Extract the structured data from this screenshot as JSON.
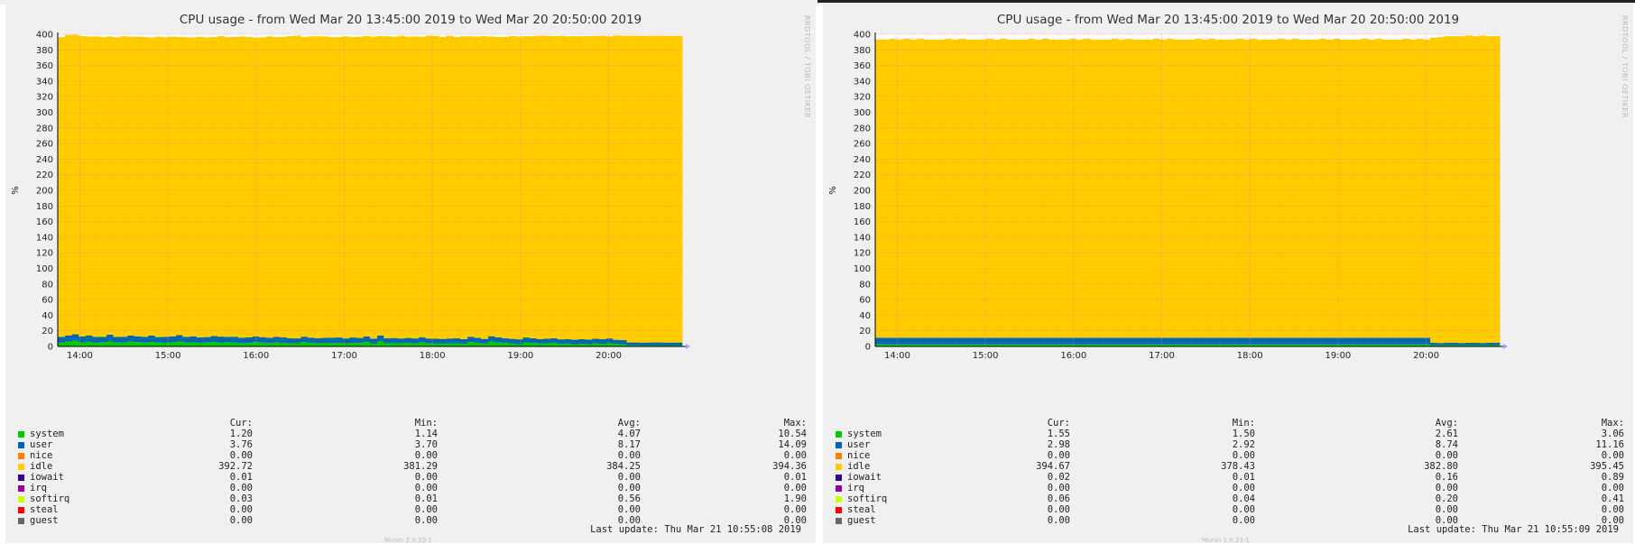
{
  "chart_data": [
    {
      "type": "area",
      "stacked": true,
      "title": "CPU usage - from Wed Mar 20 13:45:00 2019 to Wed Mar 20 20:50:00 2019",
      "ylabel": "%",
      "ylim": [
        0,
        400
      ],
      "yticks": [
        "0",
        "20",
        "40",
        "60",
        "80",
        "100",
        "120",
        "140",
        "160",
        "180",
        "200",
        "220",
        "240",
        "260",
        "280",
        "300",
        "320",
        "340",
        "360",
        "380",
        "400"
      ],
      "xticks": [
        "14:00",
        "15:00",
        "16:00",
        "17:00",
        "18:00",
        "19:00",
        "20:00"
      ],
      "x_start": "13:45",
      "x_end": "20:50",
      "watermark": "RRDTOOL / TOBI OETIKER",
      "footer": "Munin 2.0.33-1",
      "series": [
        {
          "name": "system",
          "color": "#00cc00",
          "values": [
            4.8,
            6.1,
            7.4,
            5.2,
            5.9,
            4.7,
            5.4,
            6.3,
            5.1,
            4.9,
            6.2,
            5.5,
            4.8,
            5.6,
            5.0,
            4.7,
            5.3,
            6.0,
            4.9,
            5.2,
            4.6,
            4.9,
            5.8,
            4.6,
            5.3,
            4.8,
            4.2,
            4.5,
            5.6,
            4.9,
            4.3,
            5.1,
            4.6,
            3.8,
            4.1,
            5.4,
            4.5,
            3.9,
            4.6,
            4.2,
            4.7,
            3.9,
            4.5,
            4.3,
            5.6,
            3.5,
            6.4,
            3.8,
            4.1,
            3.9,
            4.3,
            3.8,
            5.0,
            3.9,
            3.6,
            3.4,
            3.7,
            4.1,
            3.4,
            5.6,
            4.4,
            3.8,
            6.2,
            5.0,
            4.4,
            3.6,
            2.9,
            5.2,
            4.5,
            3.7,
            4.0,
            4.5,
            3.2,
            3.6,
            2.9,
            3.4,
            3.0,
            3.8,
            3.4,
            4.1,
            3.1,
            2.5,
            1.3,
            1.4,
            1.2,
            1.3,
            1.2,
            1.2,
            1.3,
            1.2
          ]
        },
        {
          "name": "user",
          "color": "#0066b3",
          "values": [
            7.5,
            8.0,
            8.2,
            7.5,
            8.3,
            7.6,
            7.0,
            8.9,
            7.1,
            7.5,
            7.8,
            7.4,
            7.6,
            8.3,
            7.0,
            7.5,
            7.6,
            8.6,
            7.3,
            7.8,
            7.1,
            7.1,
            7.6,
            8.0,
            7.0,
            7.7,
            7.0,
            7.1,
            7.2,
            7.0,
            6.9,
            7.3,
            7.0,
            6.8,
            6.2,
            7.1,
            6.8,
            6.5,
            6.6,
            7.1,
            6.8,
            6.4,
            7.0,
            6.6,
            7.3,
            6.5,
            7.6,
            6.6,
            6.7,
            6.3,
            6.6,
            6.5,
            6.9,
            6.3,
            6.4,
            6.2,
            6.5,
            6.4,
            5.9,
            6.8,
            6.7,
            5.8,
            6.9,
            6.6,
            6.2,
            6.1,
            6.2,
            6.3,
            6.0,
            5.6,
            6.0,
            6.1,
            5.9,
            5.8,
            5.7,
            6.0,
            5.8,
            6.0,
            5.8,
            6.2,
            5.4,
            5.7,
            3.8,
            3.7,
            3.7,
            3.8,
            3.9,
            3.8,
            3.7,
            3.8
          ]
        },
        {
          "name": "nice",
          "color": "#ff8000",
          "values": []
        },
        {
          "name": "idle",
          "color": "#ffcc00",
          "values": [
            384,
            385,
            384,
            385,
            383,
            385,
            384,
            382,
            384,
            385,
            383,
            384,
            384,
            382,
            385,
            384,
            384,
            382,
            384,
            383,
            385,
            384,
            383,
            385,
            384,
            384,
            386,
            385,
            383,
            384,
            386,
            384,
            385,
            387,
            388,
            384,
            386,
            387,
            386,
            385,
            385,
            387,
            385,
            386,
            385,
            387,
            384,
            387,
            386,
            388,
            386,
            387,
            385,
            388,
            388,
            387,
            388,
            386,
            388,
            385,
            386,
            388,
            384,
            385,
            386,
            388,
            388,
            386,
            387,
            389,
            388,
            387,
            389,
            388,
            389,
            388,
            389,
            388,
            389,
            387,
            390,
            390,
            393,
            393,
            393,
            393,
            393,
            393,
            393,
            393
          ]
        },
        {
          "name": "iowait",
          "color": "#330099",
          "values": []
        },
        {
          "name": "irq",
          "color": "#990099",
          "values": []
        },
        {
          "name": "softirq",
          "color": "#ccff00",
          "values": []
        },
        {
          "name": "steal",
          "color": "#ff0000",
          "values": []
        },
        {
          "name": "guest",
          "color": "#666666",
          "values": []
        }
      ],
      "legend": {
        "headers": [
          "Cur:",
          "Min:",
          "Avg:",
          "Max:"
        ],
        "rows": [
          {
            "name": "system",
            "color": "#00cc00",
            "cur": "1.20",
            "min": "1.14",
            "avg": "4.07",
            "max": "10.54"
          },
          {
            "name": "user",
            "color": "#0066b3",
            "cur": "3.76",
            "min": "3.70",
            "avg": "8.17",
            "max": "14.09"
          },
          {
            "name": "nice",
            "color": "#ff8000",
            "cur": "0.00",
            "min": "0.00",
            "avg": "0.00",
            "max": "0.00"
          },
          {
            "name": "idle",
            "color": "#ffcc00",
            "cur": "392.72",
            "min": "381.29",
            "avg": "384.25",
            "max": "394.36"
          },
          {
            "name": "iowait",
            "color": "#330099",
            "cur": "0.01",
            "min": "0.00",
            "avg": "0.00",
            "max": "0.01"
          },
          {
            "name": "irq",
            "color": "#990099",
            "cur": "0.00",
            "min": "0.00",
            "avg": "0.00",
            "max": "0.00"
          },
          {
            "name": "softirq",
            "color": "#ccff00",
            "cur": "0.03",
            "min": "0.01",
            "avg": "0.56",
            "max": "1.90"
          },
          {
            "name": "steal",
            "color": "#ff0000",
            "cur": "0.00",
            "min": "0.00",
            "avg": "0.00",
            "max": "0.00"
          },
          {
            "name": "guest",
            "color": "#666666",
            "cur": "0.00",
            "min": "0.00",
            "avg": "0.00",
            "max": "0.00"
          }
        ]
      },
      "last_update": "Last update:  Thu Mar 21 10:55:08 2019"
    },
    {
      "type": "area",
      "stacked": true,
      "title": "CPU usage - from Wed Mar 20 13:45:00 2019 to Wed Mar 20 20:50:00 2019",
      "ylabel": "%",
      "ylim": [
        0,
        400
      ],
      "yticks": [
        "0",
        "20",
        "40",
        "60",
        "80",
        "100",
        "120",
        "140",
        "160",
        "180",
        "200",
        "220",
        "240",
        "260",
        "280",
        "300",
        "320",
        "340",
        "360",
        "380",
        "400"
      ],
      "xticks": [
        "14:00",
        "15:00",
        "16:00",
        "17:00",
        "18:00",
        "19:00",
        "20:00"
      ],
      "x_start": "13:45",
      "x_end": "20:50",
      "watermark": "RRDTOOL / TOBI OETIKER",
      "footer": "Munin 2.0.33-1",
      "series": [
        {
          "name": "system",
          "color": "#00cc00",
          "values": [
            2.7,
            2.7,
            2.6,
            2.7,
            2.7,
            2.6,
            2.7,
            2.7,
            2.6,
            2.7,
            2.7,
            2.6,
            2.7,
            2.7,
            2.6,
            2.7,
            2.7,
            2.6,
            2.7,
            2.7,
            2.6,
            2.7,
            2.7,
            2.6,
            2.7,
            2.7,
            2.6,
            2.7,
            2.7,
            2.6,
            2.7,
            2.7,
            2.6,
            2.7,
            2.7,
            2.6,
            2.7,
            2.7,
            2.6,
            2.7,
            2.7,
            2.6,
            2.7,
            2.7,
            2.6,
            2.7,
            2.7,
            2.6,
            2.7,
            2.7,
            2.6,
            2.7,
            2.7,
            2.6,
            2.7,
            2.7,
            2.6,
            2.7,
            2.7,
            2.6,
            2.7,
            2.7,
            2.6,
            2.7,
            2.7,
            2.6,
            2.7,
            2.7,
            2.6,
            2.7,
            2.7,
            2.6,
            2.7,
            2.7,
            2.6,
            2.7,
            2.7,
            2.6,
            2.7,
            2.7,
            1.6,
            1.5,
            1.6,
            1.6,
            1.5,
            1.6,
            1.6,
            1.5,
            1.6,
            1.6
          ]
        },
        {
          "name": "user",
          "color": "#0066b3",
          "values": [
            8.5,
            8.5,
            8.6,
            8.5,
            8.5,
            8.6,
            8.5,
            8.5,
            8.6,
            8.5,
            8.5,
            8.6,
            8.5,
            8.5,
            8.6,
            8.5,
            8.5,
            8.6,
            8.5,
            8.5,
            8.6,
            8.5,
            8.5,
            8.6,
            8.5,
            8.5,
            8.6,
            8.5,
            8.5,
            8.6,
            8.5,
            8.5,
            8.6,
            8.5,
            8.5,
            8.6,
            8.5,
            8.5,
            8.6,
            8.5,
            8.5,
            8.6,
            8.5,
            8.5,
            8.6,
            8.5,
            8.5,
            8.6,
            8.5,
            8.5,
            8.6,
            8.5,
            8.5,
            8.6,
            8.5,
            8.5,
            8.6,
            8.5,
            8.5,
            8.6,
            8.5,
            8.5,
            8.6,
            8.5,
            8.5,
            8.6,
            8.5,
            8.5,
            8.6,
            8.5,
            8.5,
            8.6,
            8.5,
            8.5,
            8.6,
            8.5,
            8.5,
            8.6,
            8.5,
            8.5,
            3.0,
            2.9,
            3.0,
            3.0,
            2.9,
            3.0,
            3.0,
            2.9,
            3.0,
            3.0
          ]
        },
        {
          "name": "nice",
          "color": "#ff8000",
          "values": []
        },
        {
          "name": "idle",
          "color": "#ffcc00",
          "values": [
            382,
            382,
            383,
            382,
            383,
            382,
            383,
            382,
            382,
            382,
            383,
            382,
            383,
            382,
            382,
            382,
            383,
            382,
            383,
            382,
            382,
            382,
            383,
            382,
            383,
            382,
            382,
            382,
            383,
            382,
            383,
            382,
            382,
            382,
            383,
            382,
            383,
            382,
            382,
            382,
            383,
            382,
            383,
            382,
            382,
            382,
            383,
            382,
            383,
            382,
            382,
            382,
            383,
            382,
            383,
            382,
            382,
            382,
            383,
            382,
            383,
            382,
            382,
            382,
            383,
            382,
            383,
            382,
            382,
            382,
            383,
            382,
            383,
            382,
            382,
            382,
            383,
            382,
            383,
            382,
            391,
            392,
            393,
            393,
            393,
            394,
            393,
            394,
            393,
            393
          ]
        },
        {
          "name": "iowait",
          "color": "#330099",
          "values": []
        },
        {
          "name": "irq",
          "color": "#990099",
          "values": []
        },
        {
          "name": "softirq",
          "color": "#ccff00",
          "values": []
        },
        {
          "name": "steal",
          "color": "#ff0000",
          "values": []
        },
        {
          "name": "guest",
          "color": "#666666",
          "values": []
        }
      ],
      "legend": {
        "headers": [
          "Cur:",
          "Min:",
          "Avg:",
          "Max:"
        ],
        "rows": [
          {
            "name": "system",
            "color": "#00cc00",
            "cur": "1.55",
            "min": "1.50",
            "avg": "2.61",
            "max": "3.06"
          },
          {
            "name": "user",
            "color": "#0066b3",
            "cur": "2.98",
            "min": "2.92",
            "avg": "8.74",
            "max": "11.16"
          },
          {
            "name": "nice",
            "color": "#ff8000",
            "cur": "0.00",
            "min": "0.00",
            "avg": "0.00",
            "max": "0.00"
          },
          {
            "name": "idle",
            "color": "#ffcc00",
            "cur": "394.67",
            "min": "378.43",
            "avg": "382.80",
            "max": "395.45"
          },
          {
            "name": "iowait",
            "color": "#330099",
            "cur": "0.02",
            "min": "0.01",
            "avg": "0.16",
            "max": "0.89"
          },
          {
            "name": "irq",
            "color": "#990099",
            "cur": "0.00",
            "min": "0.00",
            "avg": "0.00",
            "max": "0.00"
          },
          {
            "name": "softirq",
            "color": "#ccff00",
            "cur": "0.06",
            "min": "0.04",
            "avg": "0.20",
            "max": "0.41"
          },
          {
            "name": "steal",
            "color": "#ff0000",
            "cur": "0.00",
            "min": "0.00",
            "avg": "0.00",
            "max": "0.00"
          },
          {
            "name": "guest",
            "color": "#666666",
            "cur": "0.00",
            "min": "0.00",
            "avg": "0.00",
            "max": "0.00"
          }
        ]
      },
      "last_update": "Last update:  Thu Mar 21 10:55:09 2019"
    }
  ]
}
